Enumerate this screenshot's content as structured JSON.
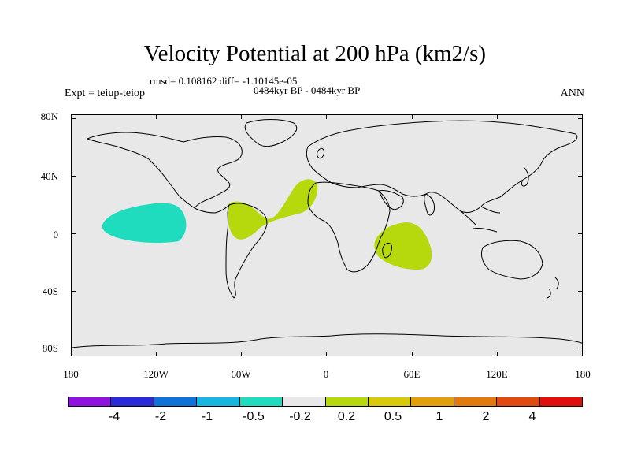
{
  "title": "Velocity Potential at 200 hPa (km2/s)",
  "rmsd_line": "rmsd= 0.108162 diff= -1.10145e-05",
  "period": "0484kyr BP - 0484kyr BP",
  "expt": "Expt = teiup-teiop",
  "season": "ANN",
  "colors": {
    "background": "#e8e8e8",
    "positive": "#b5d90d",
    "negative": "#1fdcbf",
    "coast": "#000000"
  },
  "lat_labels": [
    "80N",
    "40N",
    "0",
    "40S",
    "80S"
  ],
  "lon_labels": [
    "180",
    "120W",
    "60W",
    "0",
    "60E",
    "120E",
    "180"
  ],
  "colorbar": {
    "colors": [
      "#8f12df",
      "#2a2ad8",
      "#0f72d8",
      "#17b6e0",
      "#1fdcbf",
      "#e8e8e8",
      "#b5d90d",
      "#d8c90b",
      "#e0a00c",
      "#e07a0e",
      "#e04a0e",
      "#e00f0f"
    ],
    "labels": [
      "-4",
      "-2",
      "-1",
      "-0.5",
      "-0.2",
      "0.2",
      "0.5",
      "1",
      "2",
      "4"
    ]
  },
  "anomalies": [
    {
      "name": "central-pacific-negative",
      "sign": "negative",
      "lon": -135,
      "lat": 8
    },
    {
      "name": "south-america-atlantic-positive",
      "sign": "positive",
      "lon": -45,
      "lat": 15
    },
    {
      "name": "indian-ocean-positive",
      "sign": "positive",
      "lon": 52,
      "lat": -10
    }
  ]
}
